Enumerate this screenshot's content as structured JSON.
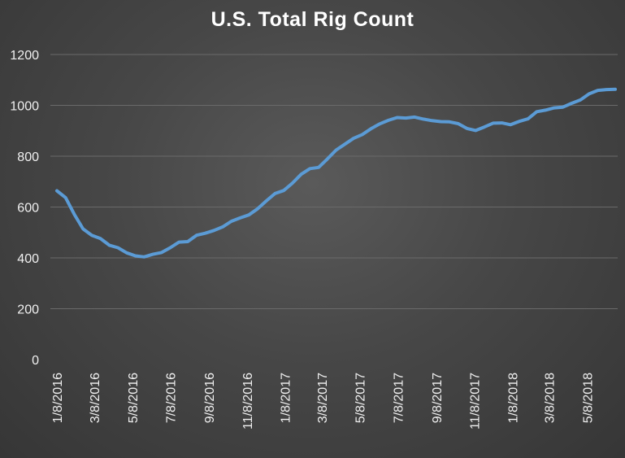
{
  "chart_data": {
    "type": "line",
    "title": "U.S. Total Rig Count",
    "xlabel": "",
    "ylabel": "",
    "ylim": [
      0,
      1200
    ],
    "yticks": [
      0,
      200,
      400,
      600,
      800,
      1000,
      1200
    ],
    "xlim": [
      "2016-01-08",
      "2018-06-22"
    ],
    "xtick_labels": [
      "1/8/2016",
      "3/8/2016",
      "5/8/2016",
      "7/8/2016",
      "9/8/2016",
      "11/8/2016",
      "1/8/2017",
      "3/8/2017",
      "5/8/2017",
      "7/8/2017",
      "9/8/2017",
      "11/8/2017",
      "1/8/2018",
      "3/8/2018",
      "5/8/2018"
    ],
    "grid": true,
    "legend": "none",
    "colors": {
      "series": "#5b9bd5",
      "grid": "#6a6a6a",
      "text": "#f0f0f0"
    },
    "series": [
      {
        "points": [
          [
            "2016-01-08",
            664
          ],
          [
            "2016-01-22",
            637
          ],
          [
            "2016-02-05",
            571
          ],
          [
            "2016-02-19",
            514
          ],
          [
            "2016-03-04",
            489
          ],
          [
            "2016-03-18",
            476
          ],
          [
            "2016-04-01",
            450
          ],
          [
            "2016-04-15",
            440
          ],
          [
            "2016-04-29",
            420
          ],
          [
            "2016-05-13",
            408
          ],
          [
            "2016-05-27",
            404
          ],
          [
            "2016-06-10",
            414
          ],
          [
            "2016-06-24",
            421
          ],
          [
            "2016-07-08",
            440
          ],
          [
            "2016-07-22",
            462
          ],
          [
            "2016-08-05",
            464
          ],
          [
            "2016-08-19",
            489
          ],
          [
            "2016-09-02",
            497
          ],
          [
            "2016-09-16",
            508
          ],
          [
            "2016-09-30",
            522
          ],
          [
            "2016-10-14",
            544
          ],
          [
            "2016-10-28",
            557
          ],
          [
            "2016-11-11",
            569
          ],
          [
            "2016-11-25",
            593
          ],
          [
            "2016-12-09",
            624
          ],
          [
            "2016-12-23",
            653
          ],
          [
            "2017-01-06",
            665
          ],
          [
            "2017-01-20",
            694
          ],
          [
            "2017-02-03",
            729
          ],
          [
            "2017-02-17",
            751
          ],
          [
            "2017-03-03",
            756
          ],
          [
            "2017-03-17",
            789
          ],
          [
            "2017-03-31",
            824
          ],
          [
            "2017-04-14",
            847
          ],
          [
            "2017-04-28",
            870
          ],
          [
            "2017-05-12",
            885
          ],
          [
            "2017-05-26",
            908
          ],
          [
            "2017-06-09",
            927
          ],
          [
            "2017-06-23",
            941
          ],
          [
            "2017-07-07",
            952
          ],
          [
            "2017-07-21",
            950
          ],
          [
            "2017-08-04",
            954
          ],
          [
            "2017-08-18",
            946
          ],
          [
            "2017-09-01",
            940
          ],
          [
            "2017-09-15",
            936
          ],
          [
            "2017-09-29",
            935
          ],
          [
            "2017-10-13",
            928
          ],
          [
            "2017-10-27",
            909
          ],
          [
            "2017-11-10",
            901
          ],
          [
            "2017-11-24",
            915
          ],
          [
            "2017-12-08",
            930
          ],
          [
            "2017-12-22",
            931
          ],
          [
            "2018-01-05",
            924
          ],
          [
            "2018-01-19",
            937
          ],
          [
            "2018-02-02",
            947
          ],
          [
            "2018-02-16",
            975
          ],
          [
            "2018-03-02",
            981
          ],
          [
            "2018-03-16",
            990
          ],
          [
            "2018-03-30",
            993
          ],
          [
            "2018-04-13",
            1008
          ],
          [
            "2018-04-27",
            1021
          ],
          [
            "2018-05-11",
            1045
          ],
          [
            "2018-05-25",
            1059
          ],
          [
            "2018-06-08",
            1062
          ],
          [
            "2018-06-22",
            1063
          ]
        ]
      }
    ]
  }
}
